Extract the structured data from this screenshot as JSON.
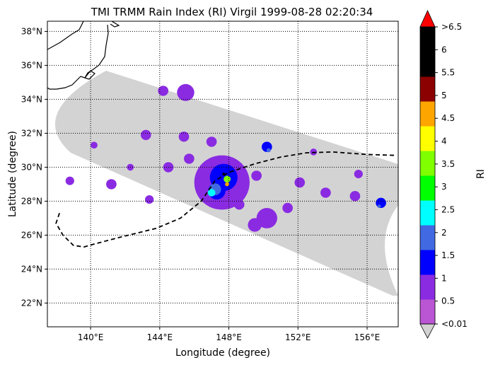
{
  "chart_data": {
    "type": "heatmap",
    "title": "TMI TRMM Rain Index (RI) Virgil 1999-08-28 02:20:34",
    "xlabel": "Longitude (degree)",
    "ylabel": "Latitude (degree)",
    "xlim": [
      137.5,
      157.8
    ],
    "ylim": [
      20.6,
      38.6
    ],
    "grid": "dotted",
    "x_ticks": [
      140,
      144,
      148,
      152,
      156
    ],
    "x_tick_labels": [
      "140°E",
      "144°E",
      "148°E",
      "152°E",
      "156°E"
    ],
    "y_ticks": [
      22,
      24,
      26,
      28,
      30,
      32,
      34,
      36,
      38
    ],
    "y_tick_labels": [
      "22°N",
      "24°N",
      "26°N",
      "28°N",
      "30°N",
      "32°N",
      "34°N",
      "36°N",
      "38°N"
    ],
    "colorbar": {
      "label": "RI",
      "tick_labels": [
        "<0.01",
        "0.5",
        "1",
        "1.5",
        "2",
        "2.5",
        "3",
        "3.5",
        "4",
        "4.5",
        "5",
        "5.5",
        "6",
        ">6.5"
      ],
      "colors": [
        "#d3d3d3",
        "#ba55d3",
        "#8a2be2",
        "#0000ff",
        "#4169e1",
        "#00ffff",
        "#00ff00",
        "#7fff00",
        "#ffff00",
        "#ffa500",
        "#8b0000",
        "#000000",
        "#000000",
        "#ff0000"
      ]
    },
    "swath_color": "#d3d3d3",
    "storm_track": [
      [
        138.2,
        27.3
      ],
      [
        138.0,
        26.7
      ],
      [
        138.4,
        26.0
      ],
      [
        139.0,
        25.4
      ],
      [
        139.6,
        25.3
      ],
      [
        140.3,
        25.5
      ],
      [
        141.8,
        25.9
      ],
      [
        143.8,
        26.4
      ],
      [
        145.2,
        27.0
      ],
      [
        146.4,
        28.0
      ],
      [
        147.2,
        29.2
      ],
      [
        148.0,
        29.7
      ],
      [
        149.5,
        30.2
      ],
      [
        151.0,
        30.6
      ],
      [
        152.5,
        30.85
      ],
      [
        154.0,
        30.9
      ],
      [
        156.0,
        30.75
      ],
      [
        157.6,
        30.7
      ]
    ],
    "rain_cells": [
      {
        "lon": 147.6,
        "lat": 29.1,
        "ri": 0.5,
        "r": 1.6
      },
      {
        "lon": 147.7,
        "lat": 29.4,
        "ri": 1.0,
        "r": 0.8
      },
      {
        "lon": 147.3,
        "lat": 28.6,
        "ri": 1.0,
        "r": 0.5
      },
      {
        "lon": 147.2,
        "lat": 28.7,
        "ri": 1.5,
        "r": 0.35
      },
      {
        "lon": 147.0,
        "lat": 28.5,
        "ri": 2.0,
        "r": 0.22
      },
      {
        "lon": 147.9,
        "lat": 29.3,
        "ri": 3.0,
        "r": 0.2
      },
      {
        "lon": 147.9,
        "lat": 29.0,
        "ri": 4.0,
        "r": 0.12
      },
      {
        "lon": 147.7,
        "lat": 29.6,
        "ri": 5.0,
        "r": 0.08
      },
      {
        "lon": 150.2,
        "lat": 31.2,
        "ri": 1.0,
        "r": 0.3
      },
      {
        "lon": 150.3,
        "lat": 31.0,
        "ri": 1.5,
        "r": 0.12
      },
      {
        "lon": 156.8,
        "lat": 27.9,
        "ri": 1.0,
        "r": 0.3
      },
      {
        "lon": 156.7,
        "lat": 27.7,
        "ri": 1.5,
        "r": 0.1
      },
      {
        "lon": 150.2,
        "lat": 27.0,
        "ri": 0.5,
        "r": 0.6
      },
      {
        "lon": 149.5,
        "lat": 26.6,
        "ri": 0.5,
        "r": 0.4
      },
      {
        "lon": 145.5,
        "lat": 34.4,
        "ri": 0.5,
        "r": 0.5
      },
      {
        "lon": 144.2,
        "lat": 34.5,
        "ri": 0.5,
        "r": 0.3
      },
      {
        "lon": 143.2,
        "lat": 31.9,
        "ri": 0.5,
        "r": 0.3
      },
      {
        "lon": 152.1,
        "lat": 29.1,
        "ri": 0.5,
        "r": 0.3
      },
      {
        "lon": 153.6,
        "lat": 28.5,
        "ri": 0.5,
        "r": 0.3
      },
      {
        "lon": 155.3,
        "lat": 28.3,
        "ri": 0.5,
        "r": 0.3
      },
      {
        "lon": 141.2,
        "lat": 29.0,
        "ri": 0.5,
        "r": 0.3
      },
      {
        "lon": 138.8,
        "lat": 29.2,
        "ri": 0.5,
        "r": 0.25
      },
      {
        "lon": 144.5,
        "lat": 30.0,
        "ri": 0.5,
        "r": 0.3
      },
      {
        "lon": 142.3,
        "lat": 30.0,
        "ri": 0.5,
        "r": 0.2
      },
      {
        "lon": 145.4,
        "lat": 31.8,
        "ri": 0.5,
        "r": 0.3
      },
      {
        "lon": 149.6,
        "lat": 29.5,
        "ri": 0.5,
        "r": 0.3
      },
      {
        "lon": 151.4,
        "lat": 27.6,
        "ri": 0.5,
        "r": 0.3
      },
      {
        "lon": 147.0,
        "lat": 31.5,
        "ri": 0.5,
        "r": 0.3
      },
      {
        "lon": 148.6,
        "lat": 27.8,
        "ri": 0.5,
        "r": 0.3
      },
      {
        "lon": 155.5,
        "lat": 29.6,
        "ri": 0.5,
        "r": 0.25
      },
      {
        "lon": 152.9,
        "lat": 30.9,
        "ri": 0.5,
        "r": 0.2
      },
      {
        "lon": 140.2,
        "lat": 31.3,
        "ri": 0.5,
        "r": 0.2
      },
      {
        "lon": 143.4,
        "lat": 28.1,
        "ri": 0.5,
        "r": 0.25
      },
      {
        "lon": 145.7,
        "lat": 30.5,
        "ri": 0.5,
        "r": 0.3
      }
    ]
  }
}
